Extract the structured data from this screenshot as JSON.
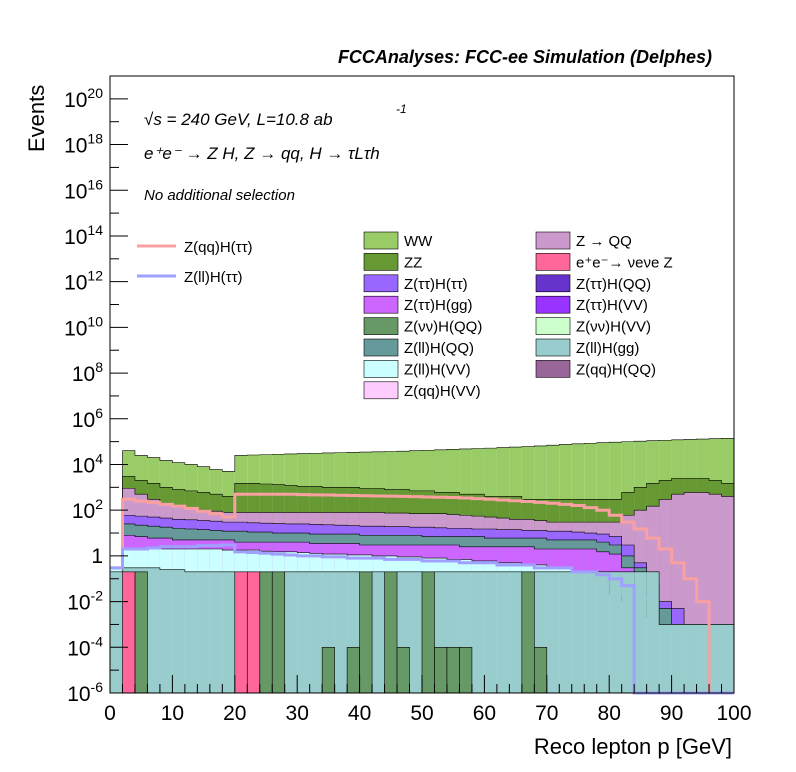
{
  "header": {
    "title": "FCCAnalyses: FCC-ee Simulation (Delphes)",
    "energy_line": "√s = 240 GeV, L=10.8 ab",
    "energy_sup": "-1",
    "process_line": "e⁺e⁻ → Z H, Z → qq, H → τLτh",
    "selection_line": "No additional selection"
  },
  "chart_data": {
    "type": "histogram",
    "title": "FCCAnalyses: FCC-ee Simulation (Delphes)",
    "xlabel": "Reco lepton p [GeV]",
    "ylabel": "Events",
    "xlim": [
      0,
      100
    ],
    "ylim": [
      1e-06,
      1e+21
    ],
    "yscale": "log",
    "x_ticks": [
      "0",
      "10",
      "20",
      "30",
      "40",
      "50",
      "60",
      "70",
      "80",
      "90",
      "100"
    ],
    "y_ticks": [
      {
        "base": "10",
        "exp": "20"
      },
      {
        "base": "10",
        "exp": "18"
      },
      {
        "base": "10",
        "exp": "16"
      },
      {
        "base": "10",
        "exp": "14"
      },
      {
        "base": "10",
        "exp": "12"
      },
      {
        "base": "10",
        "exp": "10"
      },
      {
        "base": "10",
        "exp": "8"
      },
      {
        "base": "10",
        "exp": "6"
      },
      {
        "base": "10",
        "exp": "4"
      },
      {
        "base": "10",
        "exp": "2"
      },
      {
        "base": "1",
        "exp": ""
      },
      {
        "base": "10",
        "exp": "-2"
      },
      {
        "base": "10",
        "exp": "-4"
      },
      {
        "base": "10",
        "exp": "-6"
      }
    ],
    "bin_edges": [
      0,
      2,
      4,
      6,
      8,
      10,
      12,
      14,
      16,
      18,
      20,
      22,
      24,
      26,
      28,
      30,
      32,
      34,
      36,
      38,
      40,
      42,
      44,
      46,
      48,
      50,
      52,
      54,
      56,
      58,
      60,
      62,
      64,
      66,
      68,
      70,
      72,
      74,
      76,
      78,
      80,
      82,
      84,
      86,
      88,
      90,
      92,
      94,
      96,
      98,
      100
    ],
    "stack_levels": [
      {
        "name": "Z(qq)H(QQ)",
        "values": [
          0.2,
          0.3,
          0.3,
          0.3,
          0.25,
          0.25,
          0.2,
          0.2,
          0.2,
          0.2,
          0.2,
          0.2,
          0.2,
          0.2,
          0.2,
          0.2,
          0.2,
          0.2,
          0.2,
          0.2,
          0.2,
          0.2,
          0.2,
          0.2,
          0.2,
          0.2,
          0.2,
          0.2,
          0.2,
          0.2,
          0.2,
          0.2,
          0.2,
          0.2,
          0.2,
          0.2,
          0.2,
          0.2,
          0.2,
          0.2,
          0.2,
          0.2,
          0.2,
          0.2,
          0.001,
          0.001,
          0.001,
          0.001,
          0.001,
          0.001
        ]
      },
      {
        "name": "Z(ll)H(VV)",
        "values": [
          0.3,
          2,
          2,
          2,
          2,
          2,
          2,
          2,
          2,
          1.8,
          1.8,
          1.8,
          1.6,
          1.5,
          1.5,
          1.4,
          1.3,
          1.2,
          1.2,
          1.1,
          1.1,
          1.0,
          1.0,
          0.9,
          0.9,
          0.8,
          0.8,
          0.7,
          0.7,
          0.6,
          0.6,
          0.5,
          0.5,
          0.4,
          0.4,
          0.3,
          0.3,
          0.2,
          0.2,
          0.15,
          0.02,
          0.01,
          0.01,
          0.002,
          0.001,
          0.001,
          0.001,
          0.001,
          0.001,
          0.001
        ]
      },
      {
        "name": "Z(ττ)H(gg)",
        "values": [
          0.3,
          8,
          7,
          6,
          6,
          5,
          5,
          5,
          5,
          5,
          4,
          4,
          4,
          4,
          4,
          4,
          3.5,
          3.5,
          3.5,
          3.5,
          3,
          3,
          3,
          3,
          3,
          3,
          3,
          3,
          2.5,
          2.5,
          2.5,
          2.5,
          2.5,
          2.5,
          2,
          2,
          2,
          2,
          2,
          1.5,
          1.2,
          0.3,
          0.01,
          0.005,
          0.001,
          0.001,
          0.001,
          0.001,
          0.001,
          0.001
        ]
      },
      {
        "name": "Z(ll)H(QQ)",
        "values": [
          0.3,
          25,
          22,
          20,
          18,
          16,
          15,
          14,
          13,
          12,
          12,
          11,
          11,
          10,
          10,
          10,
          9,
          9,
          9,
          9,
          8,
          8,
          8,
          8,
          8,
          7,
          7,
          7,
          7,
          7,
          6,
          6,
          6,
          6,
          6,
          5,
          5,
          5,
          5,
          4,
          3,
          1,
          0.3,
          0.02,
          0.005,
          0.001,
          0.001,
          0.001,
          0.001,
          0.001
        ]
      },
      {
        "name": "Z(ττ)H(ττ)",
        "values": [
          0.3,
          60,
          55,
          50,
          45,
          40,
          38,
          35,
          33,
          30,
          30,
          28,
          27,
          26,
          25,
          25,
          24,
          23,
          22,
          21,
          20,
          20,
          19,
          19,
          18,
          18,
          17,
          16,
          16,
          15,
          15,
          14,
          14,
          13,
          13,
          12,
          12,
          11,
          10,
          9,
          7,
          3,
          0.5,
          0.05,
          0.01,
          0.005,
          0.001,
          0.001,
          0.001,
          0.001
        ]
      },
      {
        "name": "Z → QQ",
        "values": [
          0.3,
          900,
          500,
          300,
          200,
          150,
          120,
          100,
          90,
          80,
          80,
          80,
          80,
          80,
          80,
          80,
          80,
          80,
          80,
          80,
          80,
          80,
          75,
          75,
          70,
          70,
          70,
          65,
          60,
          55,
          50,
          45,
          40,
          40,
          35,
          30,
          30,
          30,
          30,
          30,
          30,
          60,
          100,
          150,
          300,
          500,
          600,
          600,
          500,
          400
        ]
      },
      {
        "name": "ZZ",
        "values": [
          0.3,
          3000,
          2000,
          1500,
          1000,
          800,
          700,
          600,
          500,
          400,
          1500,
          1500,
          1400,
          1300,
          1200,
          1100,
          1100,
          1000,
          1000,
          1000,
          900,
          900,
          800,
          800,
          700,
          700,
          600,
          600,
          500,
          500,
          400,
          400,
          400,
          300,
          300,
          300,
          300,
          300,
          300,
          300,
          300,
          600,
          1000,
          1500,
          2000,
          2500,
          2500,
          2500,
          2000,
          1500
        ]
      },
      {
        "name": "WW",
        "values": [
          0.3,
          40000,
          25000,
          20000,
          15000,
          12000,
          10000,
          8000,
          6000,
          5000,
          25000,
          26000,
          27000,
          28000,
          29000,
          30000,
          31000,
          32000,
          33000,
          34000,
          35000,
          36000,
          37000,
          38000,
          40000,
          42000,
          44000,
          46000,
          48000,
          50000,
          52000,
          55000,
          58000,
          60000,
          65000,
          70000,
          75000,
          80000,
          85000,
          90000,
          95000,
          100000,
          105000,
          110000,
          115000,
          120000,
          125000,
          130000,
          135000,
          140000
        ]
      }
    ],
    "overlay_lines": [
      {
        "name": "Z(qq)H(ττ)",
        "values": [
          0.3,
          300,
          250,
          220,
          180,
          150,
          120,
          90,
          70,
          50,
          500,
          500,
          500,
          500,
          500,
          480,
          470,
          460,
          450,
          440,
          430,
          420,
          410,
          400,
          390,
          380,
          370,
          360,
          340,
          320,
          300,
          280,
          260,
          240,
          220,
          200,
          180,
          160,
          130,
          100,
          60,
          30,
          15,
          6,
          2,
          0.5,
          0.1,
          0.01,
          1e-06,
          1e-06
        ]
      },
      {
        "name": "Z(ll)H(ττ)",
        "values": [
          0.3,
          2,
          2,
          2.2,
          2.5,
          2.5,
          2.5,
          2.8,
          2.8,
          3,
          1.5,
          1.4,
          1.3,
          1.2,
          1.1,
          1.0,
          1.0,
          0.9,
          0.9,
          0.8,
          0.8,
          0.8,
          0.7,
          0.7,
          0.7,
          0.6,
          0.6,
          0.6,
          0.5,
          0.5,
          0.5,
          0.4,
          0.4,
          0.4,
          0.3,
          0.3,
          0.3,
          0.2,
          0.2,
          0.15,
          0.1,
          0.05,
          1e-06,
          1e-06,
          1e-06,
          1e-06,
          1e-06,
          1e-06,
          1e-06,
          1e-06
        ]
      }
    ],
    "legend": {
      "lines": [
        {
          "name": "Z(qq)H(ττ)",
          "color": "#f9a0a0"
        },
        {
          "name": "Z(ll)H(ττ)",
          "color": "#9fa0ff"
        }
      ],
      "col1": [
        {
          "name": "WW",
          "color": "#99cc66"
        },
        {
          "name": "ZZ",
          "color": "#669933"
        },
        {
          "name": "Z(ττ)H(ττ)",
          "color": "#9966ff"
        },
        {
          "name": "Z(ττ)H(gg)",
          "color": "#cc66ff"
        },
        {
          "name": "Z(νν)H(QQ)",
          "color": "#669966"
        },
        {
          "name": "Z(ll)H(QQ)",
          "color": "#669999"
        },
        {
          "name": "Z(ll)H(VV)",
          "color": "#ccffff"
        },
        {
          "name": "Z(qq)H(VV)",
          "color": "#ffccff"
        }
      ],
      "col2": [
        {
          "name": "Z → QQ",
          "color": "#cc99cc"
        },
        {
          "name": "e⁺e⁻→ νeνe Z",
          "color": "#ff6699"
        },
        {
          "name": "Z(ττ)H(QQ)",
          "color": "#6633cc"
        },
        {
          "name": "Z(ττ)H(VV)",
          "color": "#9933ff"
        },
        {
          "name": "Z(νν)H(VV)",
          "color": "#ccffcc"
        },
        {
          "name": "Z(ll)H(gg)",
          "color": "#99cccc"
        },
        {
          "name": "Z(qq)H(QQ)",
          "color": "#996699"
        }
      ]
    },
    "stack_colors": {
      "Z(qq)H(QQ)": "#99cccc",
      "Z(ll)H(VV)": "#ccffff",
      "Z(ττ)H(gg)": "#cc66ff",
      "Z(ll)H(QQ)": "#669999",
      "Z(ττ)H(ττ)": "#9966ff",
      "Z → QQ": "#cc99cc",
      "ZZ": "#669933",
      "WW": "#99cc66"
    },
    "spikes": [
      {
        "name": "Z(νν)H(QQ)",
        "color": "#669966",
        "bins": [
          [
            4,
            6
          ],
          [
            6,
            8
          ],
          [
            8,
            10
          ],
          [
            10,
            12
          ],
          [
            12,
            14
          ],
          [
            14,
            16
          ],
          [
            16,
            18
          ],
          [
            24,
            26
          ],
          [
            26,
            28
          ],
          [
            30,
            32
          ],
          [
            32,
            34
          ],
          [
            34,
            36
          ],
          [
            38,
            40
          ],
          [
            40,
            42
          ],
          [
            44,
            46
          ],
          [
            46,
            48
          ],
          [
            50,
            52
          ],
          [
            52,
            54
          ],
          [
            54,
            56
          ],
          [
            56,
            58
          ],
          [
            66,
            68
          ],
          [
            68,
            70
          ]
        ],
        "values": [
          0.2,
          1e-06,
          1e-06,
          1e-06,
          1e-06,
          1e-06,
          1e-06,
          0.2,
          0.2,
          1e-06,
          1e-06,
          0.0001,
          0.0001,
          0.2,
          0.2,
          0.0001,
          0.2,
          0.0001,
          0.0001,
          0.0001,
          0.2,
          0.0001
        ]
      },
      {
        "name": "e⁺e⁻→ νeνe Z",
        "color": "#ff6699",
        "bins": [
          [
            2,
            4
          ],
          [
            4,
            6
          ],
          [
            20,
            22
          ],
          [
            22,
            24
          ]
        ],
        "values": [
          0.2,
          1e-06,
          0.2,
          0.2
        ]
      }
    ]
  }
}
